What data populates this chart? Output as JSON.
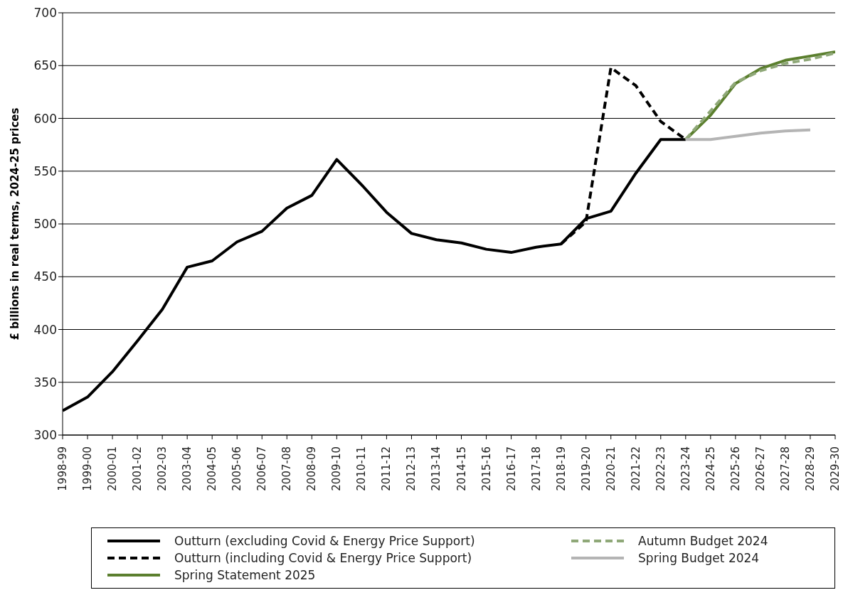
{
  "chart_data": {
    "type": "line",
    "ylabel": "£ billions in real terms, 2024-25 prices",
    "categories": [
      "1998-99",
      "1999-00",
      "2000-01",
      "2001-02",
      "2002-03",
      "2003-04",
      "2004-05",
      "2005-06",
      "2006-07",
      "2007-08",
      "2008-09",
      "2009-10",
      "2010-11",
      "2011-12",
      "2012-13",
      "2013-14",
      "2014-15",
      "2015-16",
      "2016-17",
      "2017-18",
      "2018-19",
      "2019-20",
      "2020-21",
      "2021-22",
      "2022-23",
      "2023-24",
      "2024-25",
      "2025-26",
      "2026-27",
      "2027-28",
      "2028-29",
      "2029-30"
    ],
    "series": [
      {
        "name": "Outturn (excluding Covid & Energy Price Support)",
        "color": "#000000",
        "line_style": "solid",
        "values": [
          323,
          336,
          360,
          389,
          419,
          459,
          465,
          483,
          493,
          515,
          527,
          561,
          537,
          511,
          491,
          485,
          482,
          476,
          473,
          478,
          481,
          505,
          512,
          548,
          580,
          580,
          null,
          null,
          null,
          null,
          null,
          null
        ]
      },
      {
        "name": "Outturn (including Covid & Energy Price Support)",
        "color": "#000000",
        "line_style": "dashed",
        "values": [
          null,
          null,
          null,
          null,
          null,
          null,
          null,
          null,
          null,
          null,
          null,
          null,
          null,
          null,
          null,
          null,
          null,
          null,
          null,
          null,
          481,
          502,
          648,
          631,
          597,
          580,
          null,
          null,
          null,
          null,
          null,
          null
        ]
      },
      {
        "name": "Spring Statement 2025",
        "color": "#5b7f2e",
        "line_style": "solid",
        "values": [
          null,
          null,
          null,
          null,
          null,
          null,
          null,
          null,
          null,
          null,
          null,
          null,
          null,
          null,
          null,
          null,
          null,
          null,
          null,
          null,
          null,
          null,
          null,
          null,
          null,
          580,
          603,
          633,
          647,
          655,
          659,
          663
        ]
      },
      {
        "name": "Autumn Budget 2024",
        "color": "#8fa878",
        "line_style": "dashed",
        "values": [
          null,
          null,
          null,
          null,
          null,
          null,
          null,
          null,
          null,
          null,
          null,
          null,
          null,
          null,
          null,
          null,
          null,
          null,
          null,
          null,
          null,
          null,
          null,
          null,
          null,
          580,
          607,
          634,
          645,
          652,
          656,
          662
        ]
      },
      {
        "name": "Spring Budget 2024",
        "color": "#b4b4b4",
        "line_style": "solid",
        "values": [
          null,
          null,
          null,
          null,
          null,
          null,
          null,
          null,
          null,
          null,
          null,
          null,
          null,
          null,
          null,
          null,
          null,
          null,
          null,
          null,
          null,
          null,
          null,
          null,
          null,
          580,
          580,
          583,
          586,
          588,
          589,
          null
        ]
      }
    ],
    "ylim": [
      300,
      700
    ],
    "yticks": [
      300,
      350,
      400,
      450,
      500,
      550,
      600,
      650,
      700
    ],
    "grid": "y",
    "legend": "bottom",
    "marker": "none"
  }
}
